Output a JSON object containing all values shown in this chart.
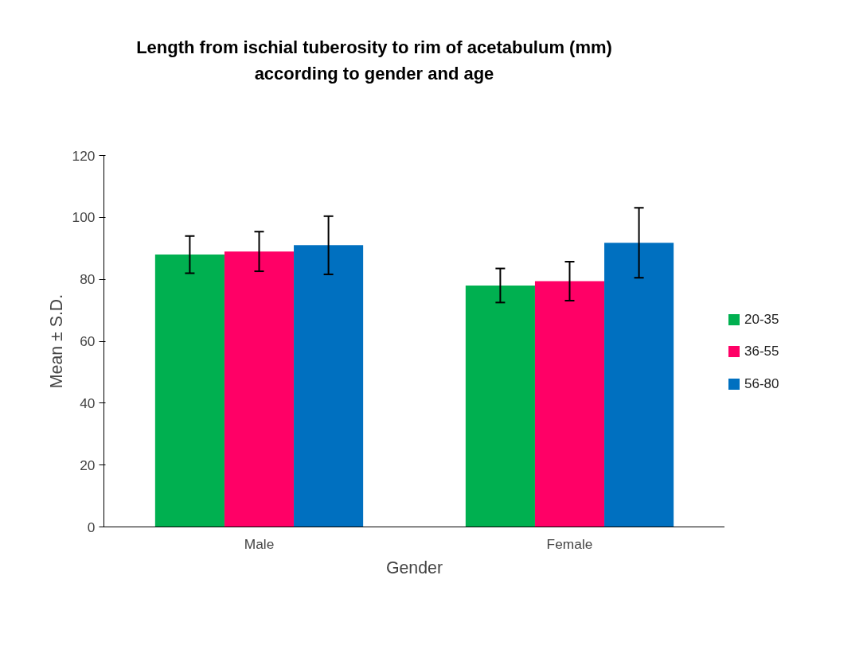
{
  "chart_data": {
    "type": "bar",
    "title": "Length from ischial tuberosity to rim of acetabulum (mm)\naccording to gender and age",
    "xlabel": "Gender",
    "ylabel": "Mean ± S.D.",
    "categories": [
      "Male",
      "Female"
    ],
    "series": [
      {
        "name": "20-35",
        "color": "#00b050",
        "values": [
          88,
          78
        ],
        "errors": [
          6,
          5.5
        ]
      },
      {
        "name": "36-55",
        "color": "#ff0066",
        "values": [
          89,
          79.4
        ],
        "errors": [
          6.4,
          6.3
        ]
      },
      {
        "name": "56-80",
        "color": "#0070c0",
        "values": [
          91,
          91.8
        ],
        "errors": [
          9.4,
          11.3
        ]
      }
    ],
    "ylim": [
      0,
      120
    ],
    "yticks": [
      0,
      20,
      40,
      60,
      80,
      100,
      120
    ],
    "grid": false,
    "legend": "right"
  }
}
